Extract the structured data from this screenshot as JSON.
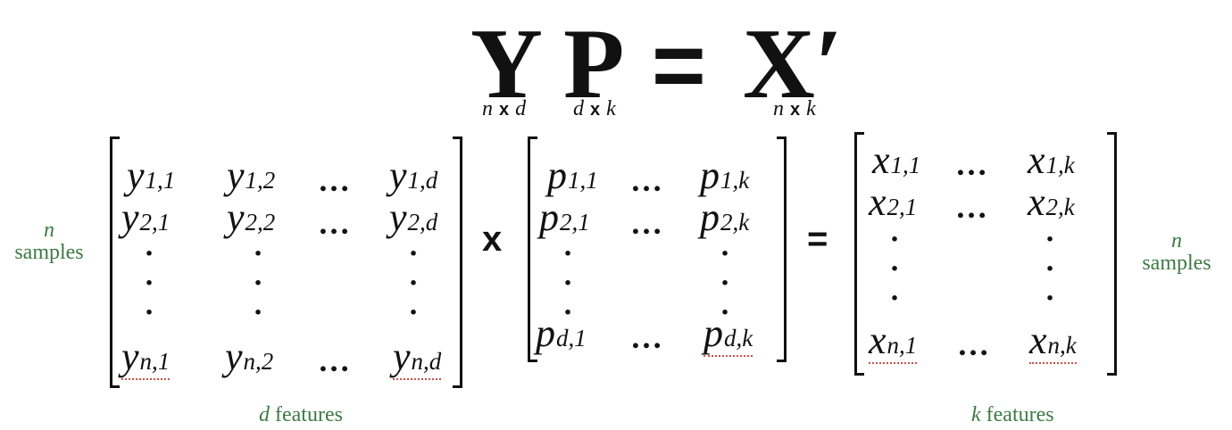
{
  "equation": {
    "lhs1": "Y",
    "lhs2": "P",
    "eq": "=",
    "rhs": "X′",
    "dims": {
      "Y": {
        "a": "n",
        "times": "x",
        "b": "d"
      },
      "P": {
        "a": "d",
        "times": "x",
        "b": "k"
      },
      "X": {
        "a": "n",
        "times": "x",
        "b": "k"
      }
    }
  },
  "operators": {
    "times": "x",
    "equals": "="
  },
  "ellipsis": "…",
  "vdot": "·",
  "matrix_Y": {
    "row1": [
      {
        "base": "y",
        "sub": "1,1"
      },
      {
        "base": "y",
        "sub": "1,2"
      },
      {
        "base": "y",
        "sub": "1,d"
      }
    ],
    "row2": [
      {
        "base": "y",
        "sub": "2,1"
      },
      {
        "base": "y",
        "sub": "2,2"
      },
      {
        "base": "y",
        "sub": "2,d"
      }
    ],
    "rowN": [
      {
        "base": "y",
        "sub": "n,1"
      },
      {
        "base": "y",
        "sub": "n,2"
      },
      {
        "base": "y",
        "sub": "n,d"
      }
    ]
  },
  "matrix_P": {
    "row1": [
      {
        "base": "p",
        "sub": "1,1"
      },
      {
        "base": "p",
        "sub": "1,k"
      }
    ],
    "row2": [
      {
        "base": "p",
        "sub": "2,1"
      },
      {
        "base": "p",
        "sub": "2,k"
      }
    ],
    "rowN": [
      {
        "base": "p",
        "sub": "d,1"
      },
      {
        "base": "p",
        "sub": "d,k"
      }
    ]
  },
  "matrix_X": {
    "row1": [
      {
        "base": "x",
        "sub": "1,1"
      },
      {
        "base": "x",
        "sub": "1,k"
      }
    ],
    "row2": [
      {
        "base": "x",
        "sub": "2,1"
      },
      {
        "base": "x",
        "sub": "2,k"
      }
    ],
    "rowN": [
      {
        "base": "x",
        "sub": "n,1"
      },
      {
        "base": "x",
        "sub": "n,k"
      }
    ]
  },
  "labels": {
    "left_samples": {
      "var": "n",
      "text": "samples"
    },
    "right_samples": {
      "var": "n",
      "text": "samples"
    },
    "d_features": {
      "var": "d",
      "text": "features"
    },
    "k_features": {
      "var": "k",
      "text": "features"
    }
  },
  "colors": {
    "label_green": "#3d7a45",
    "spell_underline": "#c9504b",
    "ink": "#111111"
  }
}
